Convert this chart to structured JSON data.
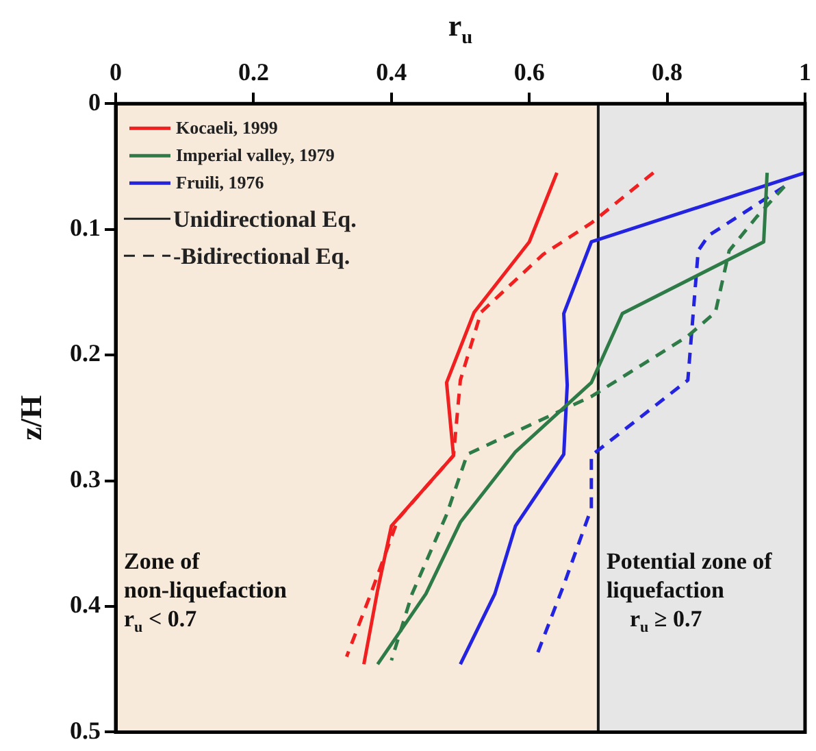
{
  "chart_data": {
    "type": "line",
    "xlabel": "r$_{u}$",
    "ylabel": "z/H",
    "xlim": [
      0,
      1
    ],
    "xticks": [
      0,
      0.2,
      0.4,
      0.6,
      0.8,
      1
    ],
    "ylim": [
      0.5,
      0
    ],
    "yticks": [
      0,
      0.1,
      0.2,
      0.3,
      0.4,
      0.5
    ],
    "grid": false,
    "legend": "top left",
    "bands": [
      {
        "axis": "x",
        "from": 0,
        "to": 0.7,
        "color": "#f8eadb",
        "label": "Zone of\nnon-liquefaction\nr$_{u}$ < 0.7"
      },
      {
        "axis": "x",
        "from": 0.7,
        "to": 1,
        "color": "#e6e6e6",
        "label": "Potential zone of\nliquefaction\n    r$_{u}$ ≥ 0.7"
      }
    ],
    "ref_lines": [
      {
        "axis": "x",
        "value": 0.7,
        "color": "#1a1a1a"
      }
    ],
    "annotations": [
      "Unidirectional Eq.",
      "-Bidirectional Eq."
    ],
    "series": [
      {
        "name": "Kocaeli, 1999",
        "color": "#f02020",
        "line_style": "solid",
        "x": [
          0.64,
          0.6,
          0.52,
          0.48,
          0.49,
          0.4,
          0.38,
          0.36
        ],
        "values": [
          0.055,
          0.11,
          0.166,
          0.222,
          0.28,
          0.336,
          0.387,
          0.446
        ]
      },
      {
        "name": "Imperial valley, 1979",
        "color": "#2e7b48",
        "line_style": "solid",
        "x": [
          0.945,
          0.94,
          0.735,
          0.69,
          0.58,
          0.5,
          0.45,
          0.38
        ],
        "values": [
          0.055,
          0.11,
          0.167,
          0.222,
          0.277,
          0.333,
          0.39,
          0.446
        ]
      },
      {
        "name": "Fruili, 1976",
        "color": "#2424e0",
        "line_style": "solid",
        "x": [
          1,
          0.69,
          0.65,
          0.655,
          0.65,
          0.58,
          0.55,
          0.5
        ],
        "values": [
          0.055,
          0.11,
          0.167,
          0.224,
          0.279,
          0.336,
          0.39,
          0.446
        ]
      },
      {
        "color": "#f02020",
        "line_style": "dashed",
        "x": [
          0.78,
          0.69,
          0.62,
          0.53,
          0.5,
          0.49,
          0.41,
          0.37,
          0.335
        ],
        "values": [
          0.055,
          0.095,
          0.12,
          0.166,
          0.22,
          0.28,
          0.33,
          0.39,
          0.44
        ]
      },
      {
        "color": "#2e7b48",
        "line_style": "dashed",
        "x": [
          0.97,
          0.93,
          0.89,
          0.87,
          0.83,
          0.69,
          0.51,
          0.48,
          0.43,
          0.4
        ],
        "values": [
          0.066,
          0.09,
          0.117,
          0.166,
          0.185,
          0.233,
          0.279,
          0.327,
          0.39,
          0.443
        ]
      },
      {
        "color": "#2424e0",
        "line_style": "dashed",
        "x": [
          0.97,
          0.86,
          0.845,
          0.83,
          0.69,
          0.69,
          0.65,
          0.61
        ],
        "values": [
          0.066,
          0.105,
          0.117,
          0.22,
          0.28,
          0.322,
          0.383,
          0.44
        ]
      }
    ]
  }
}
